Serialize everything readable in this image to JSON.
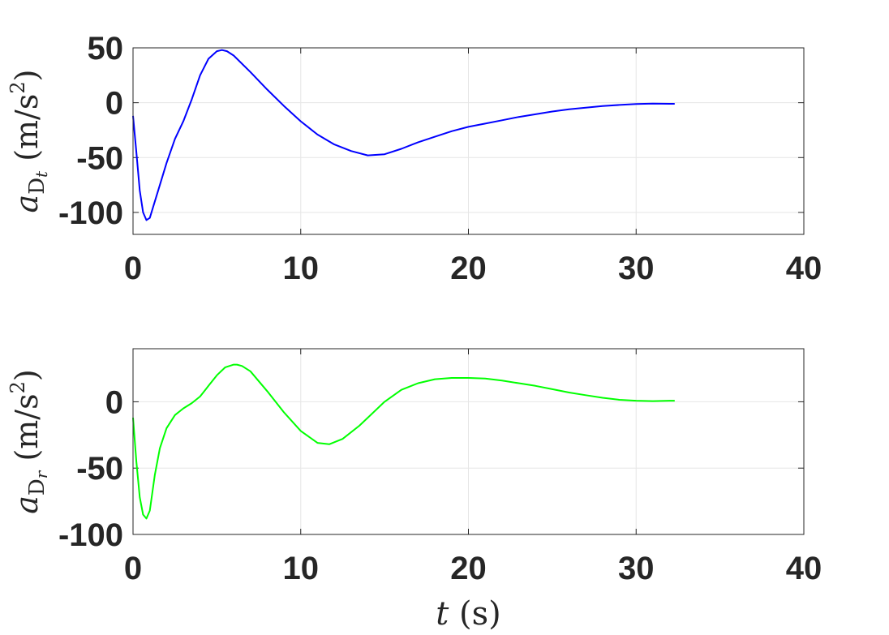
{
  "chart_data": [
    {
      "type": "line",
      "ylabel": {
        "symbol": "a",
        "sub": "D",
        "subvar": "t",
        "unit": "(m/s",
        "sup": "2",
        "close": ")"
      },
      "xlim": [
        0,
        40
      ],
      "ylim": [
        -120,
        50
      ],
      "xticks": [
        "0",
        "10",
        "20",
        "30",
        "40"
      ],
      "yticks": [
        "50",
        "0",
        "-50",
        "-100"
      ],
      "grid": true,
      "series": [
        {
          "color": "#0000ff",
          "x": [
            0.0,
            0.2,
            0.4,
            0.6,
            0.8,
            1.0,
            1.2,
            1.5,
            2.0,
            2.5,
            3.0,
            3.5,
            4.0,
            4.5,
            5.0,
            5.3,
            5.6,
            6.0,
            7.0,
            8.0,
            9.0,
            10.0,
            11.0,
            12.0,
            13.0,
            14.0,
            15.0,
            16.0,
            17.0,
            18.0,
            19.0,
            20.0,
            21.0,
            22.0,
            23.0,
            24.0,
            25.0,
            26.0,
            27.0,
            28.0,
            29.0,
            30.0,
            31.0,
            32.0,
            32.3
          ],
          "y": [
            -12,
            -45,
            -80,
            -100,
            -107,
            -105,
            -95,
            -80,
            -55,
            -33,
            -17,
            3,
            25,
            40,
            47,
            48,
            47,
            43,
            28,
            12,
            -3,
            -17,
            -29,
            -38,
            -44,
            -48,
            -47,
            -42,
            -36,
            -31,
            -26,
            -22,
            -19,
            -16,
            -13,
            -10.5,
            -8,
            -6,
            -4.5,
            -3,
            -2,
            -1.2,
            -0.8,
            -1,
            -1
          ]
        }
      ]
    },
    {
      "type": "line",
      "ylabel": {
        "symbol": "a",
        "sub": "D",
        "subvar": "r",
        "unit": "(m/s",
        "sup": "2",
        "close": ")"
      },
      "xlabel": {
        "symbol": "t",
        "unit": "(s)"
      },
      "xlim": [
        0,
        40
      ],
      "ylim": [
        -100,
        40
      ],
      "xticks": [
        "0",
        "10",
        "20",
        "30",
        "40"
      ],
      "yticks": [
        "0",
        "-50",
        "-100"
      ],
      "grid": true,
      "series": [
        {
          "color": "#00ff00",
          "x": [
            0.0,
            0.2,
            0.4,
            0.6,
            0.8,
            1.0,
            1.3,
            1.6,
            2.0,
            2.5,
            3.0,
            3.5,
            4.0,
            4.5,
            5.0,
            5.5,
            6.0,
            6.2,
            6.5,
            7.0,
            8.0,
            9.0,
            10.0,
            11.0,
            11.7,
            12.5,
            13.5,
            15.0,
            16.0,
            17.0,
            18.0,
            19.0,
            20.0,
            21.0,
            22.0,
            23.0,
            24.0,
            25.0,
            26.0,
            27.0,
            28.0,
            29.0,
            30.0,
            31.0,
            32.0,
            32.3
          ],
          "y": [
            -12,
            -45,
            -72,
            -85,
            -88,
            -82,
            -55,
            -35,
            -20,
            -10,
            -5,
            -1,
            4,
            12,
            20,
            26,
            28,
            28,
            27,
            23,
            8,
            -8,
            -22,
            -31,
            -32,
            -28,
            -18,
            0,
            9,
            14,
            17,
            18,
            18,
            17.5,
            16,
            14,
            12,
            9.5,
            7,
            5,
            3,
            1.5,
            0.8,
            0.5,
            0.8,
            0.8
          ]
        }
      ]
    }
  ]
}
